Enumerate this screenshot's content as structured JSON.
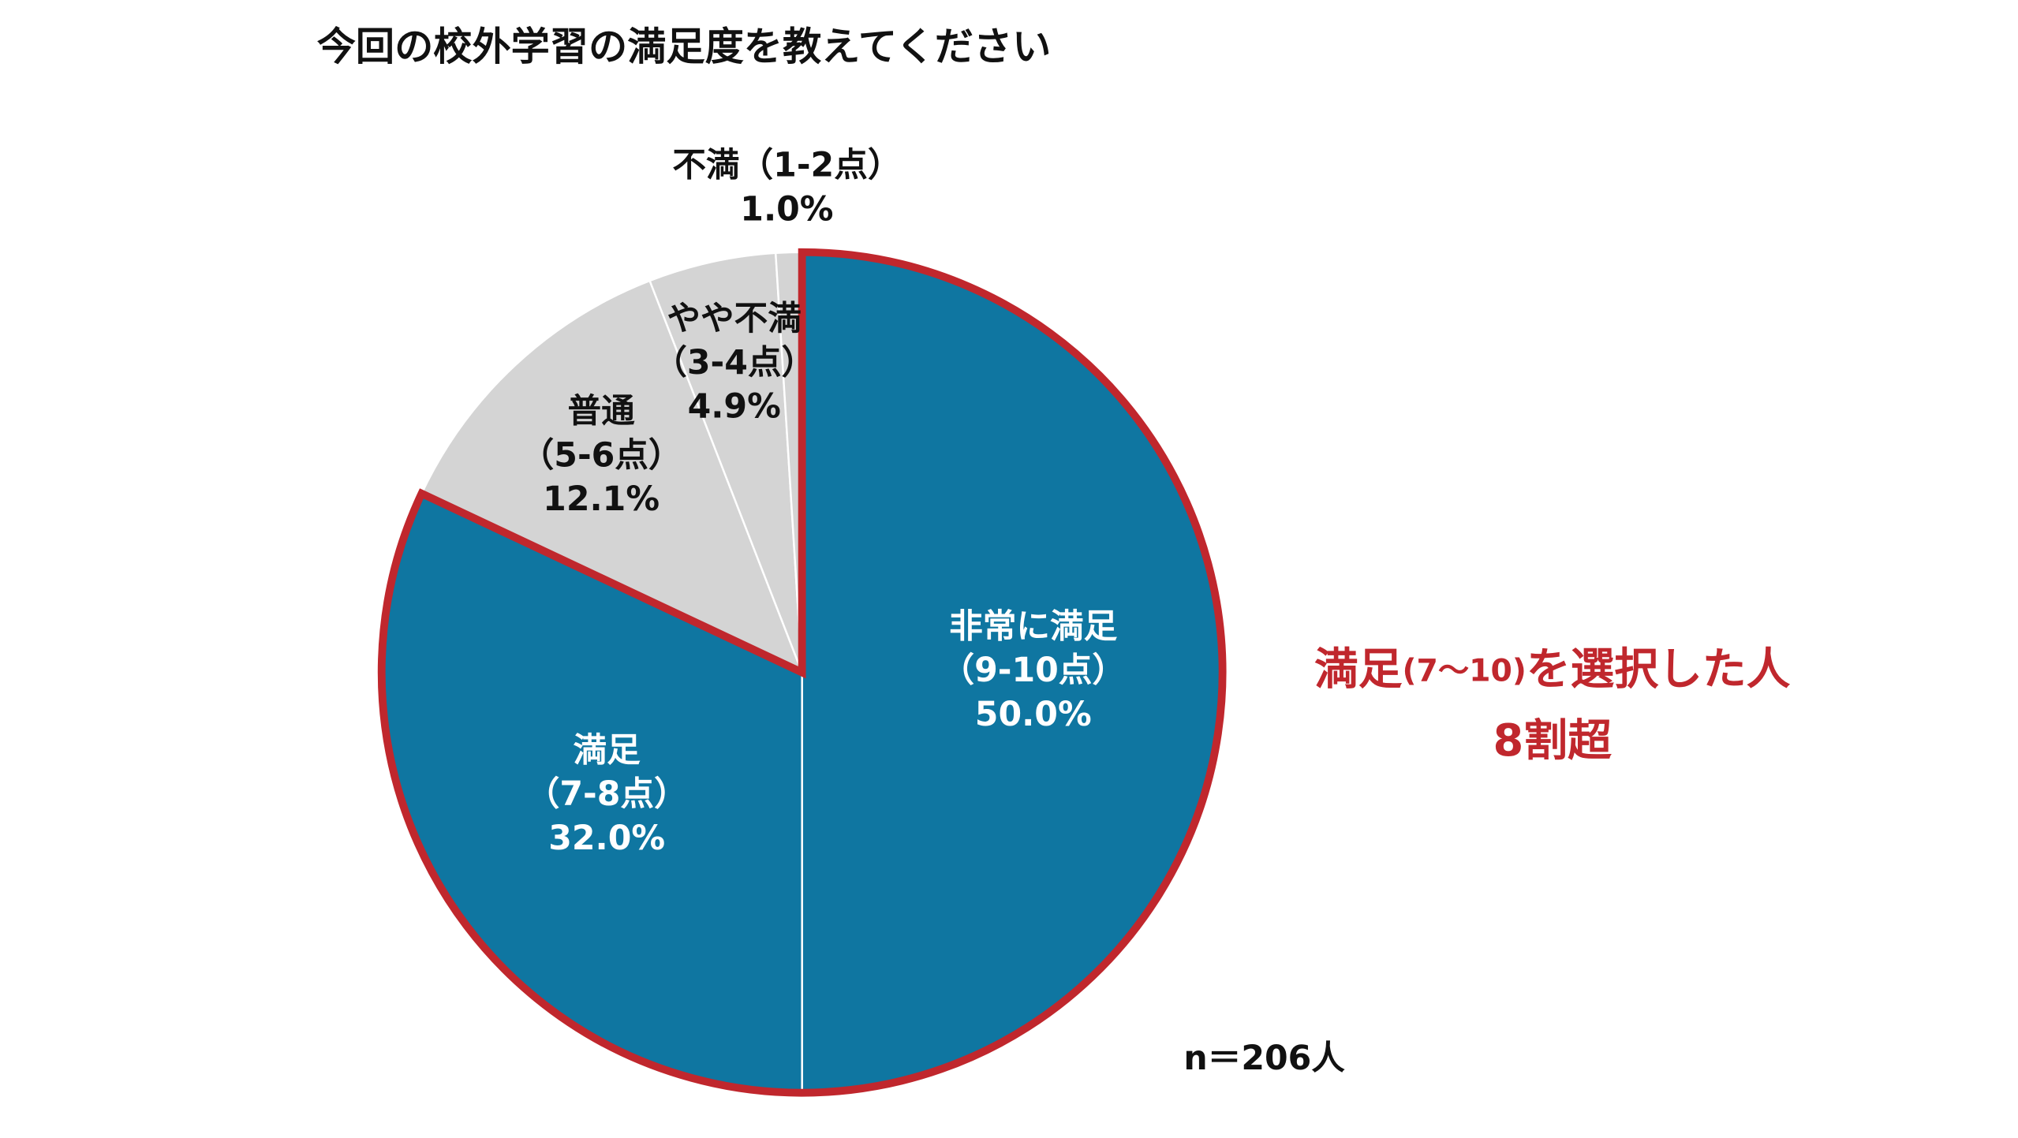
{
  "chart_data": {
    "type": "pie",
    "title": "今回の校外学習の満足度を教えてください",
    "categories": [
      [
        "非常に満足",
        "（9-10点）"
      ],
      [
        "満足",
        "（7-8点）"
      ],
      [
        "普通",
        "（5-6点）"
      ],
      [
        "やや不満",
        "（3-4点）"
      ],
      [
        "不満（1-2点）"
      ]
    ],
    "values": [
      50.0,
      32.0,
      12.1,
      4.9,
      1.0
    ],
    "value_labels": [
      "50.0%",
      "32.0%",
      "12.1%",
      "4.9%",
      "1.0%"
    ],
    "colors": [
      "#0f76a1",
      "#0f76a1",
      "#d4d4d4",
      "#d4d4d4",
      "#d4d4d4"
    ],
    "label_colors": [
      "#ffffff",
      "#ffffff",
      "#111111",
      "#111111",
      "#111111"
    ],
    "highlight": {
      "slices": [
        0,
        1
      ],
      "color": "#c0272d"
    },
    "annotation": {
      "parts": [
        "満足",
        "(7〜10)",
        "を選択した人"
      ],
      "line2": "8割超"
    },
    "note": "n＝206人"
  }
}
